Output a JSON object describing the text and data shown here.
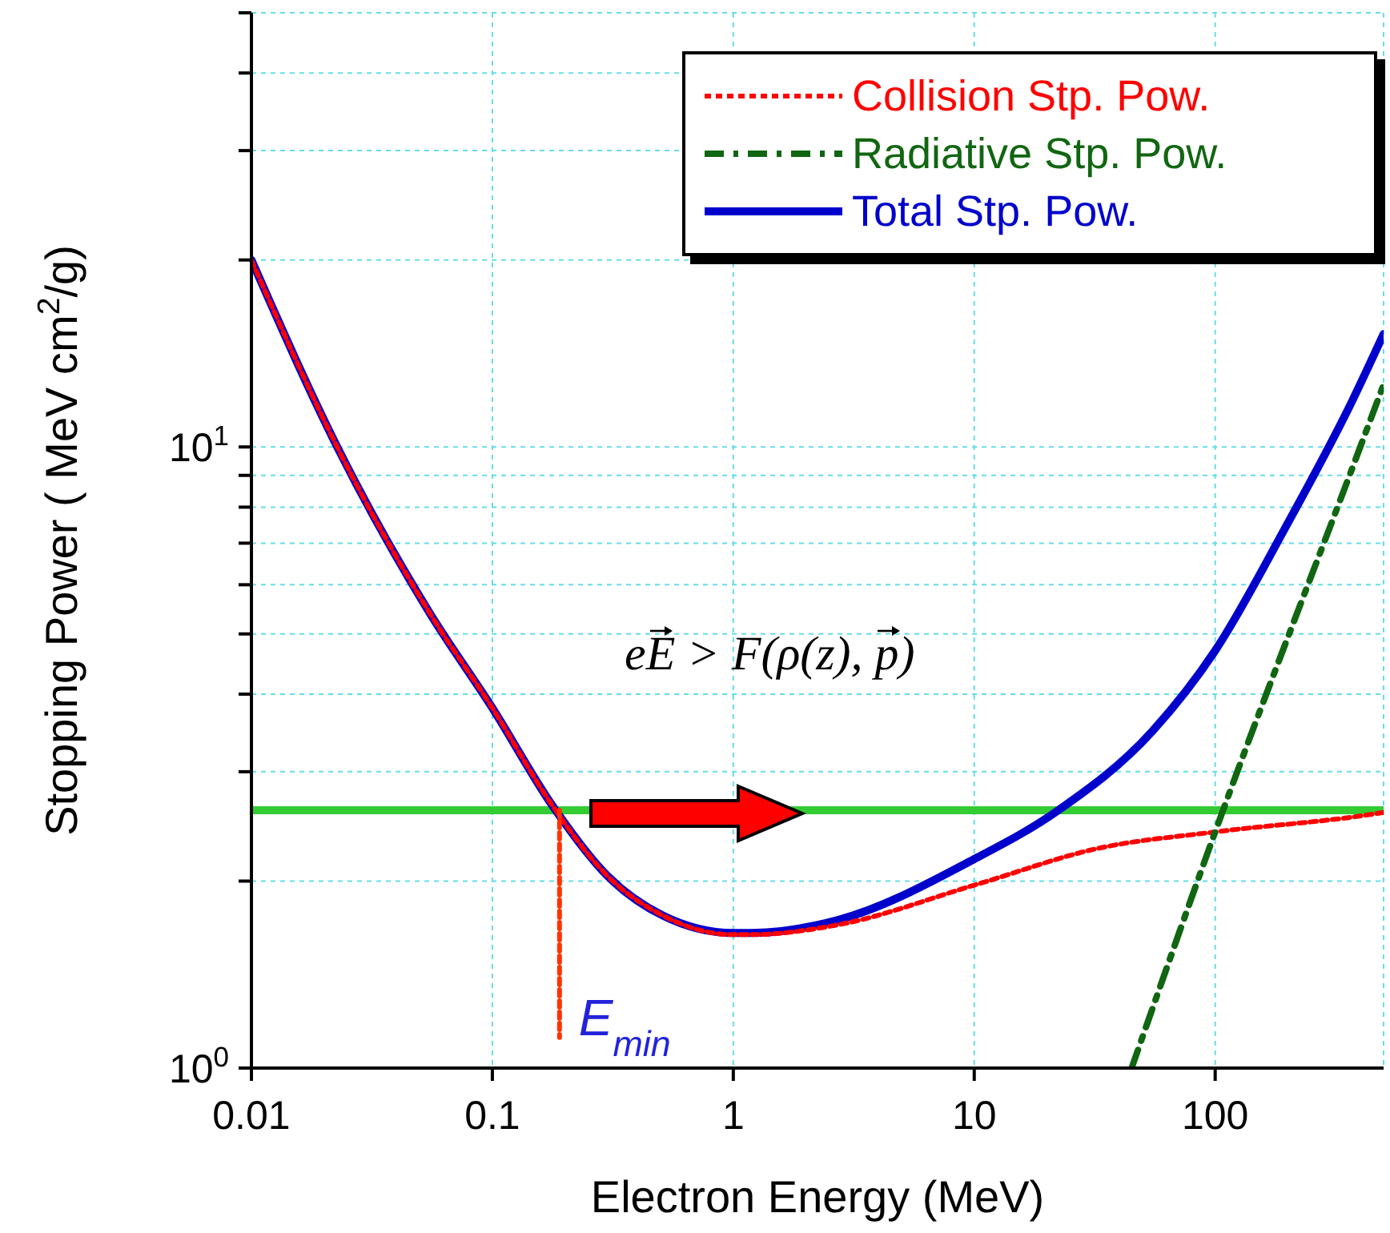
{
  "chart_data": {
    "type": "line",
    "xlabel": "Electron Energy (MeV)",
    "ylabel": "Stopping Power ( MeV cm$^{2}$/g)",
    "log": "xy",
    "xlim": [
      0.01,
      500
    ],
    "xticks": [
      0.01,
      0.1,
      1,
      10,
      100
    ],
    "ylim": [
      1,
      50
    ],
    "yticks": [
      {
        "value": 1,
        "label": "10$^{0}$"
      },
      {
        "value": 2,
        "label": null
      },
      {
        "value": 3,
        "label": null
      },
      {
        "value": 4,
        "label": null
      },
      {
        "value": 5,
        "label": null
      },
      {
        "value": 6,
        "label": null
      },
      {
        "value": 7,
        "label": null
      },
      {
        "value": 8,
        "label": null
      },
      {
        "value": 9,
        "label": null
      },
      {
        "value": 10,
        "label": "10$^{1}$"
      },
      {
        "value": 20,
        "label": null
      },
      {
        "value": 30,
        "label": null
      },
      {
        "value": 40,
        "label": null
      },
      {
        "value": 50,
        "label": null
      }
    ],
    "grid": true,
    "legend": "top right",
    "series": [
      {
        "name": "Collision Stp. Pow.",
        "color": "#ff0000",
        "line_style": "dotted",
        "x": [
          0.01,
          0.023,
          0.055,
          0.1,
          0.177,
          0.3,
          0.51,
          1,
          1.2,
          2.7,
          10,
          33,
          100,
          440,
          500
        ],
        "values": [
          20,
          9.9,
          5.4,
          3.8,
          2.65,
          2.04,
          1.76,
          1.64,
          1.64,
          1.7,
          1.97,
          2.26,
          2.4,
          2.56,
          2.58
        ]
      },
      {
        "name": "Radiative Stp. Pow.",
        "color": "#116611",
        "line_style": "dashed",
        "x": [
          45,
          100,
          400,
          500
        ],
        "values": [
          1,
          2.4,
          10,
          12.6
        ]
      },
      {
        "name": "Total Stp. Pow.",
        "color": "#0000cc",
        "line_style": "solid",
        "x": [
          0.01,
          0.023,
          0.055,
          0.1,
          0.177,
          0.3,
          0.51,
          1,
          1.2,
          2.7,
          10,
          22,
          55,
          100,
          195,
          372,
          500
        ],
        "values": [
          20,
          9.9,
          5.4,
          3.8,
          2.65,
          2.04,
          1.76,
          1.65,
          1.65,
          1.73,
          2.17,
          2.59,
          3.49,
          4.7,
          7.4,
          11.9,
          15.2
        ]
      },
      {
        "color": "#ff3300",
        "line_style": "dotted",
        "x": [
          0.19,
          0.19
        ],
        "values": [
          2.6,
          1.12
        ]
      }
    ],
    "ref_lines": [
      {
        "axis": "y",
        "value": 2.6,
        "color": "#33cc33"
      }
    ],
    "annotations": [
      "eE > F(ρ(z), p)",
      {
        "text": "E$_{min}$",
        "x": 0.19,
        "y": 1.2
      }
    ]
  }
}
